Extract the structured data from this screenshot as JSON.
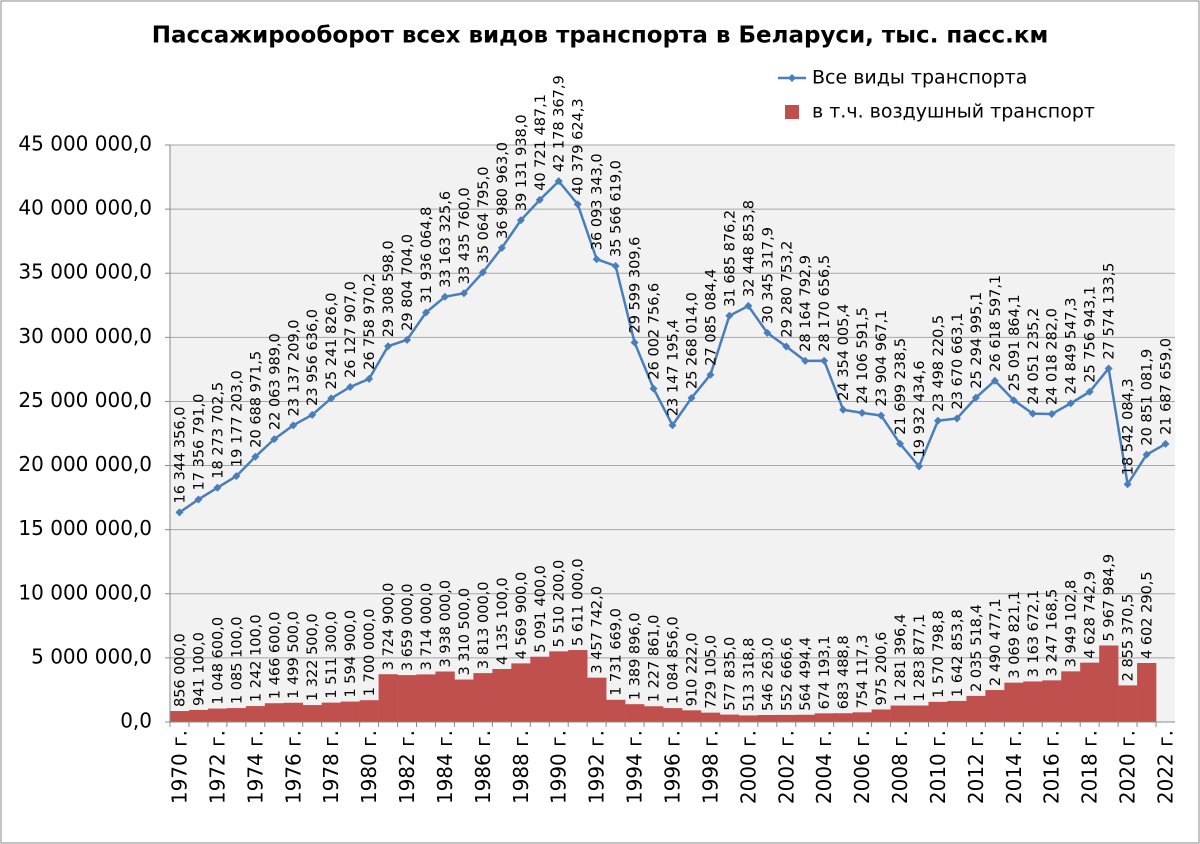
{
  "chart_data": {
    "type": "combo",
    "title": "Пассажирооборот всех видов транспорта в Беларуси, тыс. пасс.км",
    "categories": [
      "1970 г.",
      null,
      "1972 г.",
      null,
      "1974 г.",
      null,
      "1976 г.",
      null,
      "1978 г.",
      null,
      "1980 г.",
      null,
      "1982 г.",
      null,
      "1984 г.",
      null,
      "1986 г.",
      null,
      "1988 г.",
      null,
      "1990 г.",
      null,
      "1992 г.",
      null,
      "1994 г.",
      null,
      "1996 г.",
      null,
      "1998 г.",
      null,
      "2000 г.",
      null,
      "2002 г.",
      null,
      "2004 г.",
      null,
      "2006 г.",
      null,
      "2008 г.",
      null,
      "2010 г.",
      null,
      "2012 г.",
      null,
      "2014 г.",
      null,
      "2016 г.",
      null,
      "2018 г.",
      null,
      "2020 г.",
      null,
      "2022 г."
    ],
    "series": [
      {
        "name": "в т.ч. воздушный транспорт",
        "type": "bar",
        "color": "#c0504d",
        "values": [
          856000.0,
          941100.0,
          1048600.0,
          1085100.0,
          1242100.0,
          1466600.0,
          1499500.0,
          1322500.0,
          1511300.0,
          1594900.0,
          1700000.0,
          3724900.0,
          3659000.0,
          3714000.0,
          3938000.0,
          3310500.0,
          3813000.0,
          4135100.0,
          4569900.0,
          5091400.0,
          5510200.0,
          5611000.0,
          3457742.0,
          1731669.0,
          1389896.0,
          1227861.0,
          1084856.0,
          910222.0,
          729105.0,
          577835.0,
          513318.8,
          546263.0,
          552666.6,
          564494.4,
          674193.1,
          683488.8,
          754117.3,
          975200.6,
          1281396.4,
          1283877.1,
          1570798.8,
          1642853.8,
          2035518.4,
          2490477.1,
          3069821.1,
          3163672.1,
          3247168.5,
          3949102.8,
          4628742.9,
          5967984.9,
          2855370.5,
          4602290.5,
          null
        ],
        "value_labels": [
          "856 000,0",
          "941 100,0",
          "1 048 600,0",
          "1 085 100,0",
          "1 242 100,0",
          "1 466 600,0",
          "1 499 500,0",
          "1 322 500,0",
          "1 511 300,0",
          "1 594 900,0",
          "1 700 000,0",
          "3 724 900,0",
          "3 659 000,0",
          "3 714 000,0",
          "3 938 000,0",
          "3 310 500,0",
          "3 813 000,0",
          "4 135 100,0",
          "4 569 900,0",
          "5 091 400,0",
          "5 510 200,0",
          "5 611 000,0",
          "3 457 742,0",
          "1 731 669,0",
          "1 389 896,0",
          "1 227 861,0",
          "1 084 856,0",
          "910 222,0",
          "729 105,0",
          "577 835,0",
          "513 318,8",
          "546 263,0",
          "552 666,6",
          "564 494,4",
          "674 193,1",
          "683 488,8",
          "754 117,3",
          "975 200,6",
          "1 281 396,4",
          "1 283 877,1",
          "1 570 798,8",
          "1 642 853,8",
          "2 035 518,4",
          "2 490 477,1",
          "3 069 821,1",
          "3 163 672,1",
          "3 247 168,5",
          "3 949 102,8",
          "4 628 742,9",
          "5 967 984,9",
          "2 855 370,5",
          "4 602 290,5",
          null
        ]
      },
      {
        "name": "Все виды транспорта",
        "type": "line",
        "color": "#4a7ebb",
        "values": [
          16344356.0,
          17356791.0,
          18273702.5,
          19177203.0,
          20688971.5,
          22063989.0,
          23137209.0,
          23956636.0,
          25241826.0,
          26127907.0,
          26758970.2,
          29308598.0,
          29804704.0,
          31936064.8,
          33163325.6,
          33435760.0,
          35064795.0,
          36980963.0,
          39131938.0,
          40721487.1,
          42178367.9,
          40379624.3,
          36093343.0,
          35566619.0,
          29599309.6,
          26002756.6,
          23147195.4,
          25268014.0,
          27085084.4,
          31685876.2,
          32448853.8,
          30345317.9,
          29280753.2,
          28164792.9,
          28170656.5,
          24354005.4,
          24106591.5,
          23904967.1,
          21699238.5,
          19932434.6,
          23498220.5,
          23670663.1,
          25294995.1,
          26618597.1,
          25091864.1,
          24051235.2,
          24018282.0,
          24849547.3,
          25756943.1,
          27574133.5,
          18542084.3,
          20851081.9,
          21687659.0
        ],
        "value_labels": [
          "16 344 356,0",
          "17 356 791,0",
          "18 273 702,5",
          "19 177 203,0",
          "20 688 971,5",
          "22 063 989,0",
          "23 137 209,0",
          "23 956 636,0",
          "25 241 826,0",
          "26 127 907,0",
          "26 758 970,2",
          "29 308 598,0",
          "29 804 704,0",
          "31 936 064,8",
          "33 163 325,6",
          "33 435 760,0",
          "35 064 795,0",
          "36 980 963,0",
          "39 131 938,0",
          "40 721 487,1",
          "42 178 367,9",
          "40 379 624,3",
          "36 093 343,0",
          "35 566 619,0",
          "29 599 309,6",
          "26 002 756,6",
          "23 147 195,4",
          "25 268 014,0",
          "27 085 084,4",
          "31 685 876,2",
          "32 448 853,8",
          "30 345 317,9",
          "29 280 753,2",
          "28 164 792,9",
          "28 170 656,5",
          "24 354 005,4",
          "24 106 591,5",
          "23 904 967,1",
          "21 699 238,5",
          "19 932 434,6",
          "23 498 220,5",
          "23 670 663,1",
          "25 294 995,1",
          "26 618 597,1",
          "25 091 864,1",
          "24 051 235,2",
          "24 018 282,0",
          "24 849 547,3",
          "25 756 943,1",
          "27 574 133,5",
          "18 542 084,3",
          "20 851 081,9",
          "21 687 659,0"
        ]
      }
    ],
    "ylim": [
      0,
      45000000
    ],
    "yticks": [
      {
        "value": 0,
        "label": "0,0"
      },
      {
        "value": 5000000,
        "label": "5 000 000,0"
      },
      {
        "value": 10000000,
        "label": "10 000 000,0"
      },
      {
        "value": 15000000,
        "label": "15 000 000,0"
      },
      {
        "value": 20000000,
        "label": "20 000 000,0"
      },
      {
        "value": 25000000,
        "label": "25 000 000,0"
      },
      {
        "value": 30000000,
        "label": "30 000 000,0"
      },
      {
        "value": 35000000,
        "label": "35 000 000,0"
      },
      {
        "value": 40000000,
        "label": "40 000 000,0"
      },
      {
        "value": 45000000,
        "label": "45 000 000,0"
      }
    ],
    "grid": true
  }
}
